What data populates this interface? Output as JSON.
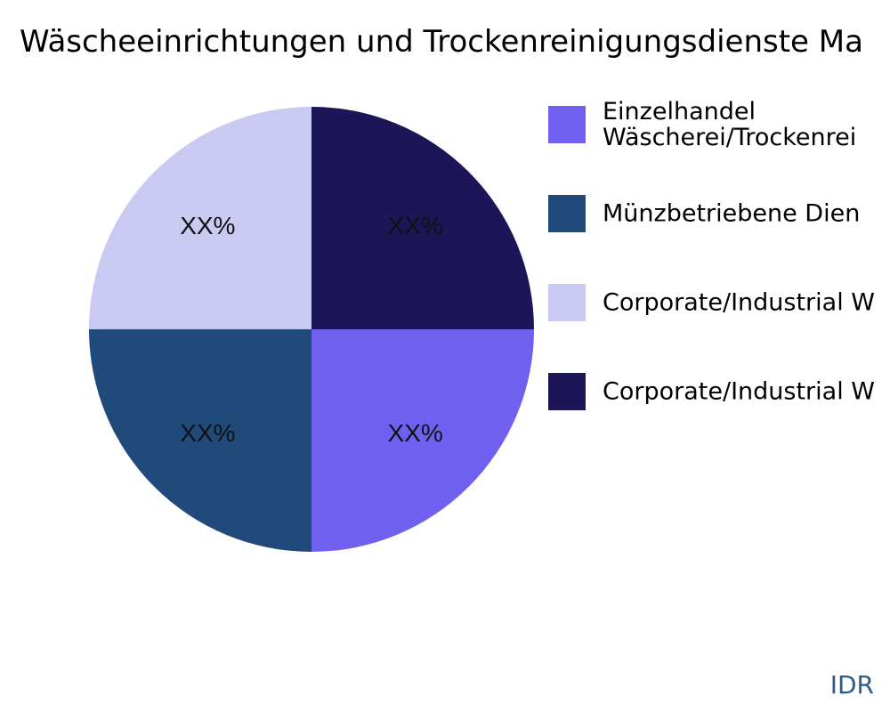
{
  "chart_data": {
    "type": "pie",
    "title": "Wäscheeinrichtungen und Trockenreinigungsdienste Ma",
    "slices": [
      {
        "label": "Einzelhandel\nWäscherei/Trockenrei",
        "value": 25,
        "display": "XX%",
        "color": "#7060f0"
      },
      {
        "label": "Münzbetriebene Dien",
        "value": 25,
        "display": "XX%",
        "color": "#1f4a7a"
      },
      {
        "label": "Corporate/Industrial W",
        "value": 25,
        "display": "XX%",
        "color": "#c9c9f2"
      },
      {
        "label": "Corporate/Industrial W",
        "value": 25,
        "display": "XX%",
        "color": "#1c1658"
      }
    ],
    "legend_position": "right"
  },
  "watermark": "IDR"
}
